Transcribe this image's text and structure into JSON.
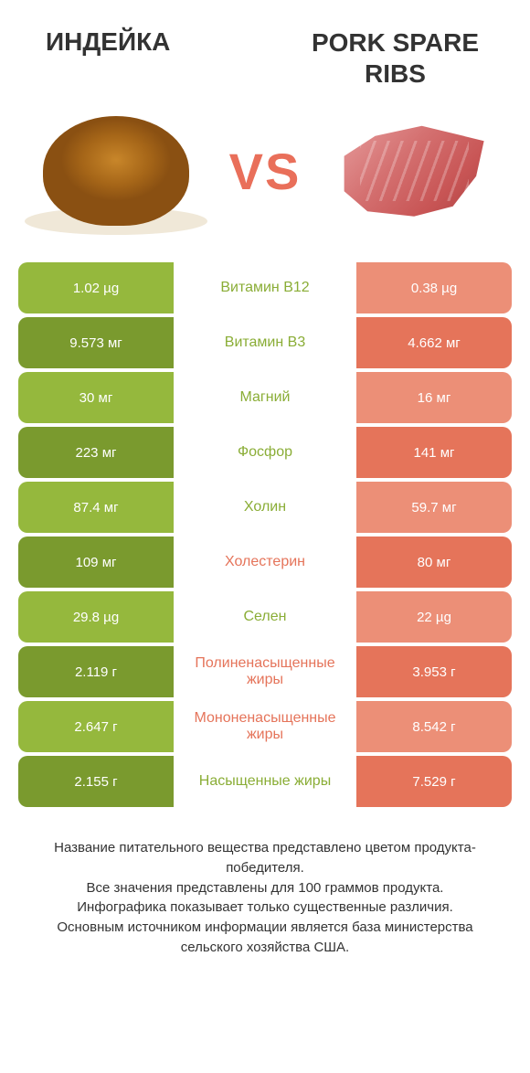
{
  "header": {
    "left_title": "ИНДЕЙКА",
    "right_title_line1": "PORK SPARE",
    "right_title_line2": "RIBS",
    "vs": "VS"
  },
  "colors": {
    "green_light": "#95b83d",
    "green_dark": "#7a9a2e",
    "red_light": "#ec8f77",
    "red_dark": "#e5745a",
    "mid_green": "#8aad36",
    "mid_red": "#e5745a",
    "vs_color": "#e96f5a",
    "background": "#ffffff"
  },
  "rows": [
    {
      "left": "1.02 µg",
      "label": "Витамин B12",
      "right": "0.38 µg",
      "winner": "left"
    },
    {
      "left": "9.573 мг",
      "label": "Витамин B3",
      "right": "4.662 мг",
      "winner": "left"
    },
    {
      "left": "30 мг",
      "label": "Магний",
      "right": "16 мг",
      "winner": "left"
    },
    {
      "left": "223 мг",
      "label": "Фосфор",
      "right": "141 мг",
      "winner": "left"
    },
    {
      "left": "87.4 мг",
      "label": "Холин",
      "right": "59.7 мг",
      "winner": "left"
    },
    {
      "left": "109 мг",
      "label": "Холестерин",
      "right": "80 мг",
      "winner": "right"
    },
    {
      "left": "29.8 µg",
      "label": "Селен",
      "right": "22 µg",
      "winner": "left"
    },
    {
      "left": "2.119 г",
      "label": "Полиненасыщенные жиры",
      "right": "3.953 г",
      "winner": "right"
    },
    {
      "left": "2.647 г",
      "label": "Мононенасыщенные жиры",
      "right": "8.542 г",
      "winner": "right"
    },
    {
      "left": "2.155 г",
      "label": "Насыщенные жиры",
      "right": "7.529 г",
      "winner": "left"
    }
  ],
  "footer": {
    "line1": "Название питательного вещества представлено цветом продукта-победителя.",
    "line2": "Все значения представлены для 100 граммов продукта.",
    "line3": "Инфографика показывает только существенные различия.",
    "line4": "Основным источником информации является база министерства сельского хозяйства США."
  }
}
